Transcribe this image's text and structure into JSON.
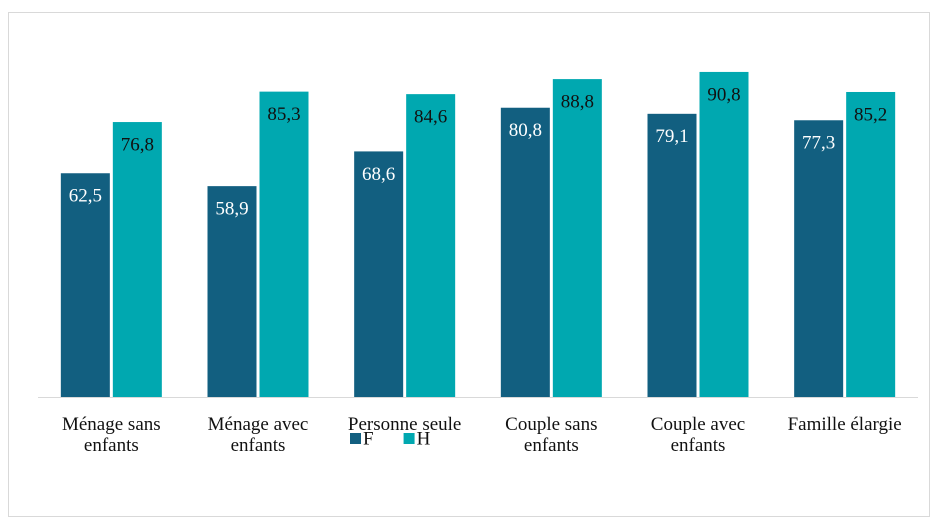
{
  "chart_data": {
    "type": "bar",
    "categories": [
      "Ménage sans enfants",
      "Ménage avec enfants",
      "Personne seule",
      "Couple sans enfants",
      "Couple avec enfants",
      "Famille élargie"
    ],
    "series": [
      {
        "name": "F",
        "color": "#125f80",
        "values": [
          62.5,
          58.9,
          68.6,
          80.8,
          79.1,
          77.3
        ],
        "value_labels": [
          "62,5",
          "58,9",
          "68,6",
          "80,8",
          "79,1",
          "77,3"
        ]
      },
      {
        "name": "H",
        "color": "#00a8b0",
        "values": [
          76.8,
          85.3,
          84.6,
          88.8,
          90.8,
          85.2
        ],
        "value_labels": [
          "76,8",
          "85,3",
          "84,6",
          "88,8",
          "90,8",
          "85,2"
        ]
      }
    ],
    "ylim": [
      0,
      100
    ],
    "legend": "bottom"
  }
}
